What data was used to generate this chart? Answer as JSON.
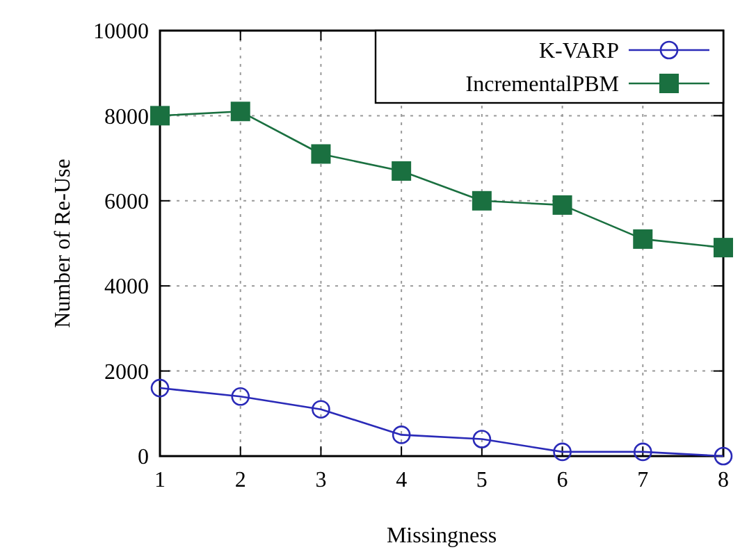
{
  "chart_data": {
    "type": "line",
    "xlabel": "Missingness",
    "ylabel": "Number of Re-Use",
    "x": [
      1,
      2,
      3,
      4,
      5,
      6,
      7,
      8
    ],
    "series": [
      {
        "name": "K-VARP",
        "color": "#2a2ab8",
        "marker": "circle",
        "values": [
          1600,
          1400,
          1100,
          500,
          400,
          100,
          100,
          0
        ]
      },
      {
        "name": "IncrementalPBM",
        "color": "#1a7040",
        "marker": "square",
        "values": [
          8000,
          8100,
          7100,
          6700,
          6000,
          5900,
          5100,
          4900
        ]
      }
    ],
    "xlim": [
      1,
      8
    ],
    "xticks": [
      1,
      2,
      3,
      4,
      5,
      6,
      7,
      8
    ],
    "ylim": [
      0,
      10000
    ],
    "yticks": [
      0,
      2000,
      4000,
      6000,
      8000,
      10000
    ],
    "grid": true,
    "legend": "top right"
  }
}
